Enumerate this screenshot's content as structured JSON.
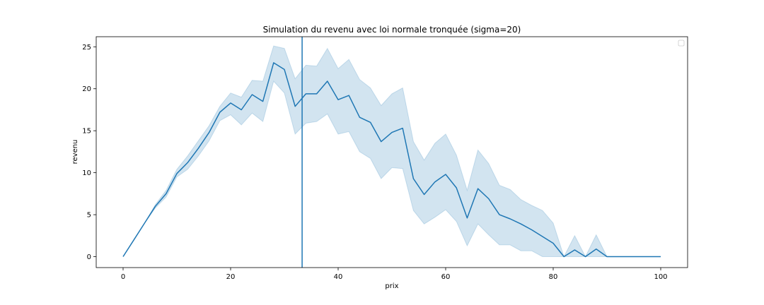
{
  "chart_data": {
    "type": "line",
    "title": "Simulation du revenu avec loi normale tronquée (sigma=20)",
    "xlabel": "prix",
    "ylabel": "revenu",
    "xlim": [
      -5,
      105
    ],
    "ylim": [
      -1.3,
      26.2
    ],
    "xticks": [
      0,
      20,
      40,
      60,
      80,
      100
    ],
    "yticks": [
      0,
      5,
      10,
      15,
      20,
      25
    ],
    "grid": false,
    "legend": "top-right",
    "vline": 33.3,
    "color": "#1f77b4",
    "band_color": "#1f77b4",
    "series": [
      {
        "x": [
          0,
          2,
          4,
          6,
          8,
          10,
          12,
          14,
          16,
          18,
          20,
          22,
          24,
          26,
          28,
          30,
          32,
          34,
          36,
          38,
          40,
          42,
          44,
          46,
          48,
          50,
          52,
          54,
          56,
          58,
          60,
          62,
          64,
          66,
          68,
          70,
          72,
          74,
          76,
          78,
          80,
          82,
          84,
          86,
          88,
          90,
          92,
          94,
          96,
          98,
          100
        ],
        "values": [
          0,
          2.0,
          4.0,
          6.0,
          7.5,
          9.9,
          11.2,
          12.9,
          14.8,
          17.2,
          18.3,
          17.5,
          19.3,
          18.5,
          23.1,
          22.3,
          17.9,
          19.4,
          19.4,
          20.9,
          18.7,
          19.2,
          16.6,
          16.0,
          13.7,
          14.8,
          15.3,
          9.3,
          7.4,
          8.9,
          9.8,
          8.2,
          4.6,
          8.1,
          6.9,
          5.0,
          4.5,
          3.9,
          3.2,
          2.4,
          1.6,
          0.0,
          0.8,
          0.0,
          0.9,
          0.0,
          0.0,
          0.0,
          0.0,
          0.0,
          0.0
        ],
        "lower": [
          0,
          2.0,
          4.0,
          5.8,
          7.1,
          9.5,
          10.4,
          12.0,
          13.8,
          16.2,
          16.9,
          15.7,
          17.1,
          16.1,
          20.9,
          19.5,
          14.6,
          15.9,
          16.1,
          17.0,
          14.6,
          14.9,
          12.5,
          11.7,
          9.3,
          10.6,
          10.5,
          5.5,
          3.9,
          4.7,
          5.6,
          4.2,
          1.3,
          3.9,
          2.6,
          1.4,
          1.4,
          0.7,
          0.7,
          0.0,
          0.0,
          0.0,
          0.0,
          0.0,
          0.0,
          0.0,
          0.0,
          0.0,
          0.0,
          0.0,
          0.0
        ],
        "upper": [
          0,
          2.0,
          4.0,
          6.2,
          7.9,
          10.4,
          12.0,
          13.8,
          15.6,
          17.9,
          19.5,
          19.0,
          21.0,
          20.9,
          25.1,
          24.8,
          21.2,
          22.8,
          22.7,
          24.8,
          22.4,
          23.5,
          21.1,
          20.1,
          18.0,
          19.4,
          20.1,
          13.7,
          11.5,
          13.5,
          14.6,
          12.1,
          7.9,
          12.7,
          11.1,
          8.5,
          8.0,
          6.8,
          6.1,
          5.5,
          4.0,
          0.0,
          2.5,
          0.0,
          2.6,
          0.0,
          0.0,
          0.0,
          0.0,
          0.0,
          0.0
        ]
      }
    ]
  }
}
